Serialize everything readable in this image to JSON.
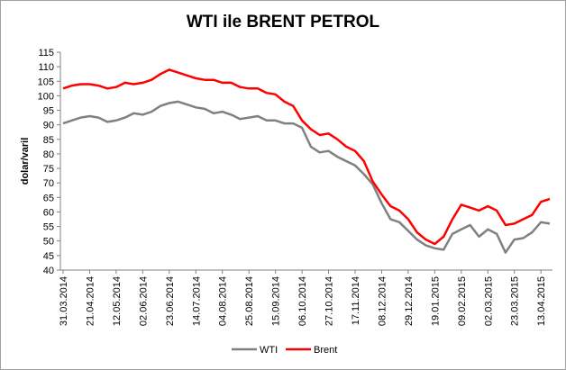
{
  "chart_data": {
    "type": "line",
    "title": "WTI ile BRENT PETROL",
    "ylabel": "dolar/varil",
    "xlabel": "",
    "ylim": [
      40,
      115
    ],
    "yticks": [
      40,
      45,
      50,
      55,
      60,
      65,
      70,
      75,
      80,
      85,
      90,
      95,
      100,
      105,
      110,
      115
    ],
    "grid": false,
    "legend": "bottom",
    "x_tick_labels": [
      "31.03.2014",
      "21.04.2014",
      "12.05.2014",
      "02.06.2014",
      "23.06.2014",
      "14.07.2014",
      "04.08.2014",
      "25.08.2014",
      "15.09.2014",
      "06.10.2014",
      "27.10.2014",
      "17.11.2014",
      "08.12.2014",
      "29.12.2014",
      "19.01.2015",
      "09.02.2015",
      "02.03.2015",
      "23.03.2015",
      "13.04.2015"
    ],
    "x": [
      "31.03.2014",
      "07.04.2014",
      "14.04.2014",
      "21.04.2014",
      "28.04.2014",
      "05.05.2014",
      "12.05.2014",
      "19.05.2014",
      "26.05.2014",
      "02.06.2014",
      "09.06.2014",
      "16.06.2014",
      "23.06.2014",
      "30.06.2014",
      "07.07.2014",
      "14.07.2014",
      "21.07.2014",
      "28.07.2014",
      "04.08.2014",
      "11.08.2014",
      "18.08.2014",
      "25.08.2014",
      "01.09.2014",
      "08.09.2014",
      "15.09.2014",
      "22.09.2014",
      "29.09.2014",
      "06.10.2014",
      "13.10.2014",
      "20.10.2014",
      "27.10.2014",
      "03.11.2014",
      "10.11.2014",
      "17.11.2014",
      "24.11.2014",
      "01.12.2014",
      "08.12.2014",
      "15.12.2014",
      "22.12.2014",
      "29.12.2014",
      "05.01.2015",
      "12.01.2015",
      "19.01.2015",
      "26.01.2015",
      "02.02.2015",
      "09.02.2015",
      "16.02.2015",
      "23.02.2015",
      "02.03.2015",
      "09.03.2015",
      "16.03.2015",
      "23.03.2015",
      "30.03.2015",
      "06.04.2015",
      "13.04.2015",
      "20.04.2015"
    ],
    "series": [
      {
        "name": "WTI",
        "color": "#808080",
        "values": [
          90.5,
          91.5,
          92.5,
          93.0,
          92.5,
          91.0,
          91.5,
          92.5,
          94.0,
          93.5,
          94.5,
          96.5,
          97.5,
          98.0,
          97.0,
          96.0,
          95.5,
          94.0,
          94.5,
          93.5,
          92.0,
          92.5,
          93.0,
          91.5,
          91.5,
          90.5,
          90.5,
          89.0,
          82.5,
          80.5,
          81.0,
          79.0,
          77.5,
          76.0,
          73.0,
          69.5,
          63.0,
          57.5,
          56.5,
          53.5,
          50.5,
          48.5,
          47.5,
          47.0,
          52.5,
          54.0,
          55.5,
          51.5,
          54.0,
          52.5,
          46.0,
          50.5,
          51.0,
          53.0,
          56.5,
          56.0
        ]
      },
      {
        "name": "Brent",
        "color": "#ff0000",
        "values": [
          102.5,
          103.5,
          104.0,
          104.0,
          103.5,
          102.5,
          103.0,
          104.5,
          104.0,
          104.5,
          105.5,
          107.5,
          109.0,
          108.0,
          107.0,
          106.0,
          105.5,
          105.5,
          104.5,
          104.5,
          103.0,
          102.5,
          102.5,
          101.0,
          100.5,
          98.0,
          96.5,
          91.5,
          88.5,
          86.5,
          87.0,
          85.0,
          82.5,
          81.0,
          77.5,
          70.5,
          66.0,
          62.0,
          60.5,
          57.5,
          53.0,
          50.5,
          49.0,
          51.5,
          57.5,
          62.5,
          61.5,
          60.5,
          62.0,
          60.5,
          55.5,
          56.0,
          57.5,
          59.0,
          63.5,
          64.5
        ]
      }
    ]
  }
}
